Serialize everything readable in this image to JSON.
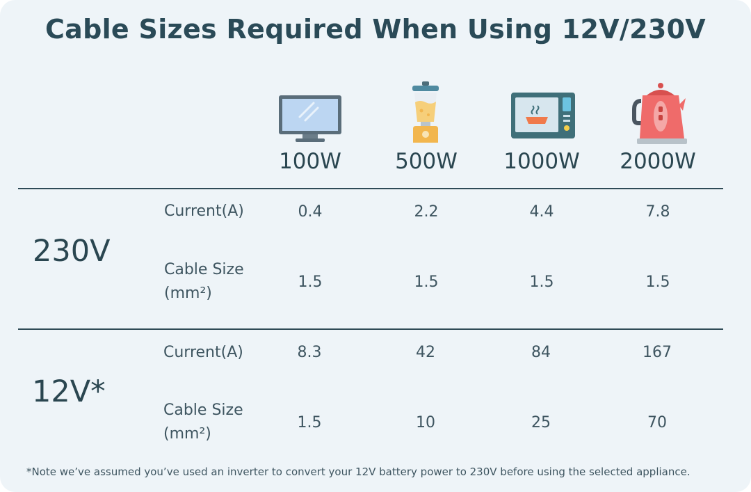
{
  "title": "Cable Sizes Required When Using 12V/230V",
  "columns": [
    {
      "wattage": "100W",
      "icon": "monitor-icon"
    },
    {
      "wattage": "500W",
      "icon": "blender-icon"
    },
    {
      "wattage": "1000W",
      "icon": "microwave-icon"
    },
    {
      "wattage": "2000W",
      "icon": "kettle-icon"
    }
  ],
  "sections": [
    {
      "voltage": "230V",
      "current_label": "Current(A)",
      "cable_label_1": "Cable Size",
      "cable_label_2": "(mm²)",
      "current": [
        "0.4",
        "2.2",
        "4.4",
        "7.8"
      ],
      "cable": [
        "1.5",
        "1.5",
        "1.5",
        "1.5"
      ]
    },
    {
      "voltage": "12V*",
      "current_label": "Current(A)",
      "cable_label_1": "Cable Size",
      "cable_label_2": "(mm²)",
      "current": [
        "8.3",
        "42",
        "84",
        "167"
      ],
      "cable": [
        "1.5",
        "10",
        "25",
        "70"
      ]
    }
  ],
  "note": "*Note we’ve assumed you’ve used an inverter to convert your 12V battery power to 230V before using the selected appliance.",
  "colors": {
    "background": "#eef4f8",
    "text": "#2a4650",
    "rule": "#2f4b57"
  }
}
